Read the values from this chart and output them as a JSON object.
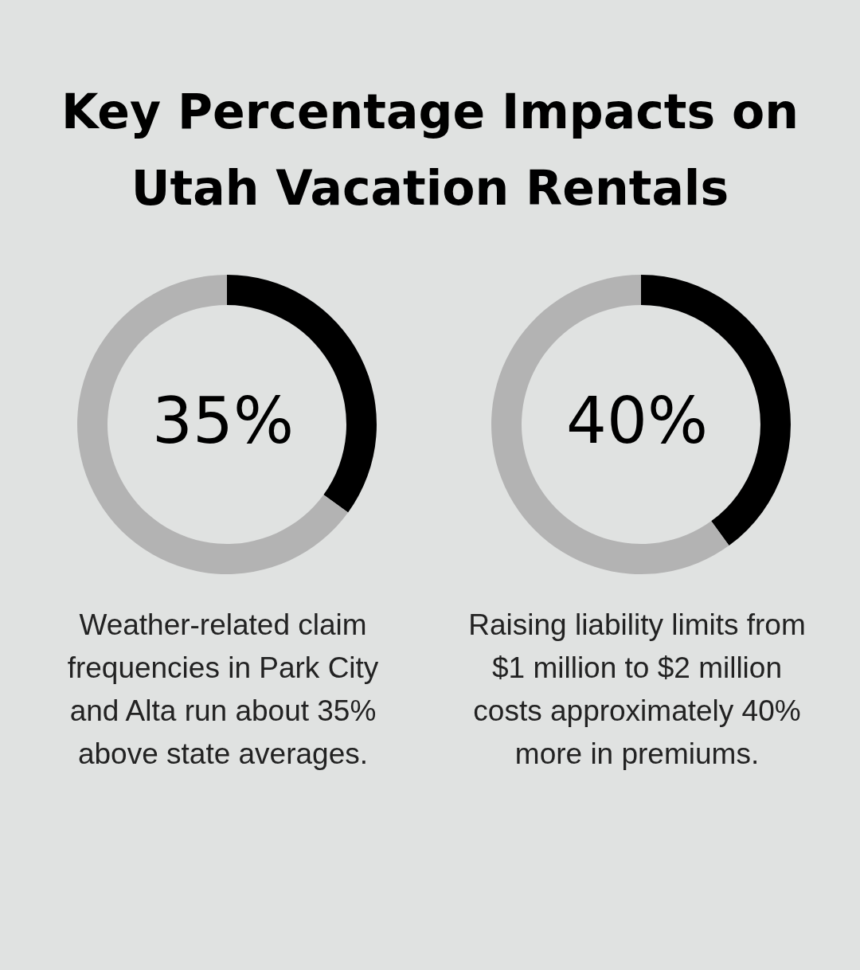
{
  "chart_data": [
    {
      "type": "donut",
      "title": "Key Percentage Impacts on Utah Vacation Rentals",
      "categories": [
        null,
        null
      ],
      "values": [
        35,
        65
      ],
      "colors": [
        "#000000",
        "#b3b3b3"
      ],
      "annotations": [
        "35%",
        "Weather-related claim frequencies in Park City and Alta run about 35% above state averages."
      ]
    },
    {
      "type": "donut",
      "categories": [
        null,
        null
      ],
      "values": [
        40,
        60
      ],
      "colors": [
        "#000000",
        "#b3b3b3"
      ],
      "annotations": [
        "40%",
        "Raising liability limits from $1 million to $2 million costs approximately 40% more in premiums."
      ]
    }
  ]
}
